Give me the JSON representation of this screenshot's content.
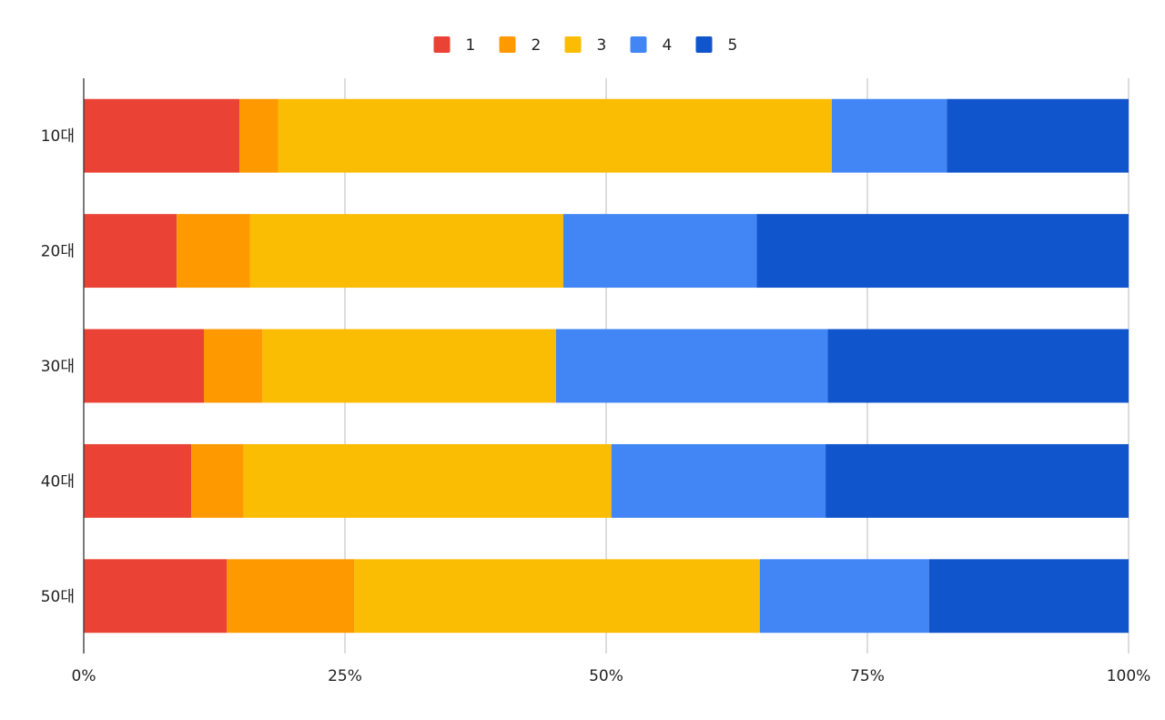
{
  "chart_data": {
    "type": "bar",
    "orientation": "horizontal",
    "stacked": "percent",
    "categories": [
      "10대",
      "20대",
      "30대",
      "40대",
      "50대"
    ],
    "series": [
      {
        "name": "1",
        "color": "#EA4335",
        "values": [
          14.9,
          8.9,
          11.5,
          10.3,
          13.7
        ]
      },
      {
        "name": "2",
        "color": "#FF9900",
        "values": [
          3.7,
          7.0,
          5.6,
          5.0,
          12.2
        ]
      },
      {
        "name": "3",
        "color": "#FBBC04",
        "values": [
          53.0,
          30.0,
          28.1,
          35.2,
          38.8
        ]
      },
      {
        "name": "4",
        "color": "#4285F4",
        "values": [
          11.0,
          18.5,
          26.0,
          20.5,
          16.2
        ]
      },
      {
        "name": "5",
        "color": "#1155CC",
        "values": [
          17.4,
          35.6,
          28.8,
          29.0,
          19.1
        ]
      }
    ],
    "xticks": [
      "0%",
      "25%",
      "50%",
      "75%",
      "100%"
    ],
    "xlim": [
      0,
      100
    ],
    "grid": true,
    "legend": "top",
    "title": "",
    "xlabel": "",
    "ylabel": ""
  }
}
